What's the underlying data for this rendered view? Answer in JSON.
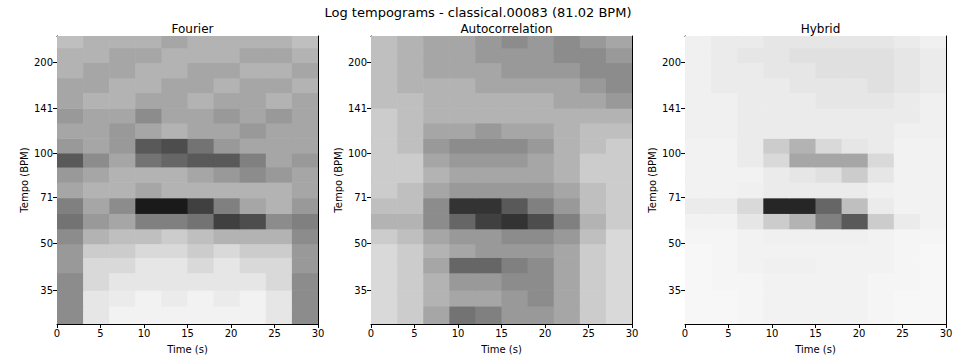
{
  "title": "Log tempograms - classical.00083 (81.02 BPM)",
  "chart_data": [
    {
      "type": "heatmap",
      "title": "Fourier",
      "x_label": "Time (s)",
      "y_label": "Tempo (BPM)",
      "xlim": [
        0,
        30
      ],
      "ylim": [
        27,
        245
      ],
      "xticks": [
        0,
        5,
        10,
        15,
        20,
        25,
        30
      ],
      "yticks": [
        35,
        50,
        71,
        100,
        141,
        200
      ],
      "log": "y",
      "color": "#000000",
      "color_range": [
        0,
        1
      ],
      "x_edges": [
        0,
        3,
        6,
        9,
        12,
        15,
        18,
        21,
        24,
        27,
        30
      ],
      "y_edges": [
        27,
        31,
        35,
        40,
        45,
        50,
        56,
        63,
        71,
        80,
        90,
        100,
        112,
        126,
        141,
        159,
        178,
        200,
        224,
        245
      ],
      "cells": [
        [
          0.45,
          0.1,
          0.05,
          0.05,
          0.05,
          0.05,
          0.05,
          0.05,
          0.1,
          0.45
        ],
        [
          0.45,
          0.1,
          0.08,
          0.05,
          0.08,
          0.05,
          0.08,
          0.05,
          0.1,
          0.45
        ],
        [
          0.45,
          0.15,
          0.1,
          0.1,
          0.1,
          0.1,
          0.1,
          0.1,
          0.15,
          0.45
        ],
        [
          0.4,
          0.15,
          0.15,
          0.1,
          0.1,
          0.15,
          0.1,
          0.15,
          0.15,
          0.4
        ],
        [
          0.4,
          0.2,
          0.2,
          0.15,
          0.15,
          0.2,
          0.15,
          0.2,
          0.2,
          0.4
        ],
        [
          0.45,
          0.3,
          0.25,
          0.25,
          0.2,
          0.25,
          0.3,
          0.3,
          0.3,
          0.45
        ],
        [
          0.55,
          0.4,
          0.35,
          0.5,
          0.5,
          0.55,
          0.75,
          0.7,
          0.45,
          0.5
        ],
        [
          0.5,
          0.35,
          0.45,
          0.9,
          0.9,
          0.75,
          0.5,
          0.35,
          0.3,
          0.4
        ],
        [
          0.35,
          0.3,
          0.3,
          0.35,
          0.3,
          0.3,
          0.3,
          0.3,
          0.3,
          0.35
        ],
        [
          0.4,
          0.35,
          0.3,
          0.3,
          0.3,
          0.35,
          0.4,
          0.45,
          0.4,
          0.35
        ],
        [
          0.65,
          0.45,
          0.35,
          0.55,
          0.6,
          0.65,
          0.65,
          0.5,
          0.35,
          0.4
        ],
        [
          0.4,
          0.35,
          0.4,
          0.65,
          0.7,
          0.55,
          0.4,
          0.35,
          0.35,
          0.35
        ],
        [
          0.35,
          0.35,
          0.4,
          0.35,
          0.3,
          0.35,
          0.35,
          0.4,
          0.35,
          0.35
        ],
        [
          0.4,
          0.35,
          0.35,
          0.45,
          0.35,
          0.35,
          0.4,
          0.35,
          0.4,
          0.35
        ],
        [
          0.35,
          0.3,
          0.3,
          0.35,
          0.35,
          0.3,
          0.35,
          0.35,
          0.3,
          0.35
        ],
        [
          0.35,
          0.35,
          0.3,
          0.3,
          0.35,
          0.35,
          0.3,
          0.35,
          0.35,
          0.3
        ],
        [
          0.3,
          0.35,
          0.35,
          0.3,
          0.3,
          0.35,
          0.35,
          0.3,
          0.3,
          0.35
        ],
        [
          0.3,
          0.3,
          0.35,
          0.35,
          0.3,
          0.3,
          0.3,
          0.35,
          0.35,
          0.3
        ],
        [
          0.25,
          0.3,
          0.3,
          0.3,
          0.35,
          0.3,
          0.3,
          0.3,
          0.3,
          0.25
        ]
      ]
    },
    {
      "type": "heatmap",
      "title": "Autocorrelation",
      "x_label": "Time (s)",
      "y_label": "Tempo (BPM)",
      "xlim": [
        0,
        30
      ],
      "ylim": [
        27,
        245
      ],
      "xticks": [
        0,
        5,
        10,
        15,
        20,
        25,
        30
      ],
      "yticks": [
        35,
        50,
        71,
        100,
        141,
        200
      ],
      "log": "y",
      "color": "#000000",
      "color_range": [
        0,
        1
      ],
      "x_edges": [
        0,
        3,
        6,
        9,
        12,
        15,
        18,
        21,
        24,
        27,
        30
      ],
      "y_edges": [
        27,
        31,
        35,
        40,
        45,
        50,
        56,
        63,
        71,
        80,
        90,
        100,
        112,
        126,
        141,
        159,
        178,
        200,
        224,
        245
      ],
      "cells": [
        [
          0.15,
          0.2,
          0.35,
          0.55,
          0.5,
          0.4,
          0.4,
          0.35,
          0.2,
          0.15
        ],
        [
          0.15,
          0.2,
          0.3,
          0.35,
          0.35,
          0.4,
          0.45,
          0.35,
          0.2,
          0.15
        ],
        [
          0.15,
          0.2,
          0.3,
          0.4,
          0.4,
          0.45,
          0.45,
          0.35,
          0.2,
          0.15
        ],
        [
          0.15,
          0.2,
          0.35,
          0.6,
          0.6,
          0.5,
          0.45,
          0.35,
          0.2,
          0.15
        ],
        [
          0.15,
          0.2,
          0.3,
          0.35,
          0.4,
          0.4,
          0.4,
          0.35,
          0.2,
          0.15
        ],
        [
          0.2,
          0.25,
          0.35,
          0.4,
          0.4,
          0.45,
          0.45,
          0.4,
          0.25,
          0.15
        ],
        [
          0.3,
          0.3,
          0.45,
          0.6,
          0.75,
          0.8,
          0.7,
          0.5,
          0.3,
          0.2
        ],
        [
          0.25,
          0.25,
          0.45,
          0.8,
          0.8,
          0.65,
          0.5,
          0.4,
          0.25,
          0.2
        ],
        [
          0.2,
          0.25,
          0.35,
          0.4,
          0.4,
          0.4,
          0.4,
          0.35,
          0.25,
          0.2
        ],
        [
          0.2,
          0.2,
          0.3,
          0.35,
          0.35,
          0.35,
          0.35,
          0.3,
          0.2,
          0.2
        ],
        [
          0.2,
          0.2,
          0.35,
          0.4,
          0.4,
          0.4,
          0.35,
          0.3,
          0.2,
          0.2
        ],
        [
          0.2,
          0.25,
          0.4,
          0.45,
          0.45,
          0.45,
          0.4,
          0.3,
          0.25,
          0.2
        ],
        [
          0.2,
          0.25,
          0.35,
          0.35,
          0.4,
          0.35,
          0.35,
          0.3,
          0.25,
          0.25
        ],
        [
          0.2,
          0.25,
          0.3,
          0.3,
          0.3,
          0.3,
          0.3,
          0.3,
          0.3,
          0.3
        ],
        [
          0.25,
          0.25,
          0.3,
          0.3,
          0.3,
          0.3,
          0.3,
          0.35,
          0.35,
          0.4
        ],
        [
          0.25,
          0.3,
          0.3,
          0.3,
          0.35,
          0.35,
          0.35,
          0.35,
          0.4,
          0.45
        ],
        [
          0.25,
          0.3,
          0.35,
          0.35,
          0.35,
          0.4,
          0.4,
          0.4,
          0.45,
          0.45
        ],
        [
          0.25,
          0.3,
          0.35,
          0.35,
          0.4,
          0.4,
          0.4,
          0.45,
          0.45,
          0.4
        ],
        [
          0.25,
          0.3,
          0.35,
          0.35,
          0.4,
          0.45,
          0.4,
          0.45,
          0.4,
          0.35
        ]
      ]
    },
    {
      "type": "heatmap",
      "title": "Hybrid",
      "x_label": "Time (s)",
      "y_label": "Tempo (BPM)",
      "xlim": [
        0,
        30
      ],
      "ylim": [
        27,
        245
      ],
      "xticks": [
        0,
        5,
        10,
        15,
        20,
        25,
        30
      ],
      "yticks": [
        35,
        50,
        71,
        100,
        141,
        200
      ],
      "log": "y",
      "color": "#000000",
      "color_range": [
        0,
        1
      ],
      "x_edges": [
        0,
        3,
        6,
        9,
        12,
        15,
        18,
        21,
        24,
        27,
        30
      ],
      "y_edges": [
        27,
        31,
        35,
        40,
        45,
        50,
        56,
        63,
        71,
        80,
        90,
        100,
        112,
        126,
        141,
        159,
        178,
        200,
        224,
        245
      ],
      "cells": [
        [
          0.03,
          0.03,
          0.04,
          0.05,
          0.05,
          0.05,
          0.05,
          0.04,
          0.03,
          0.03
        ],
        [
          0.03,
          0.03,
          0.04,
          0.05,
          0.05,
          0.05,
          0.05,
          0.04,
          0.03,
          0.03
        ],
        [
          0.03,
          0.04,
          0.04,
          0.05,
          0.05,
          0.05,
          0.05,
          0.04,
          0.04,
          0.03
        ],
        [
          0.03,
          0.04,
          0.05,
          0.06,
          0.06,
          0.05,
          0.05,
          0.05,
          0.04,
          0.03
        ],
        [
          0.03,
          0.04,
          0.05,
          0.05,
          0.05,
          0.05,
          0.05,
          0.05,
          0.04,
          0.03
        ],
        [
          0.04,
          0.04,
          0.05,
          0.06,
          0.06,
          0.06,
          0.06,
          0.05,
          0.04,
          0.04
        ],
        [
          0.05,
          0.05,
          0.1,
          0.2,
          0.3,
          0.5,
          0.65,
          0.2,
          0.08,
          0.05
        ],
        [
          0.08,
          0.08,
          0.15,
          0.85,
          0.85,
          0.6,
          0.25,
          0.08,
          0.05,
          0.05
        ],
        [
          0.05,
          0.05,
          0.06,
          0.08,
          0.08,
          0.08,
          0.08,
          0.06,
          0.05,
          0.05
        ],
        [
          0.05,
          0.05,
          0.05,
          0.08,
          0.1,
          0.12,
          0.2,
          0.1,
          0.05,
          0.05
        ],
        [
          0.05,
          0.05,
          0.08,
          0.15,
          0.35,
          0.35,
          0.35,
          0.15,
          0.05,
          0.05
        ],
        [
          0.05,
          0.05,
          0.08,
          0.2,
          0.3,
          0.15,
          0.1,
          0.08,
          0.05,
          0.05
        ],
        [
          0.06,
          0.06,
          0.08,
          0.08,
          0.08,
          0.08,
          0.08,
          0.08,
          0.06,
          0.06
        ],
        [
          0.06,
          0.06,
          0.08,
          0.08,
          0.08,
          0.08,
          0.08,
          0.08,
          0.08,
          0.06
        ],
        [
          0.06,
          0.06,
          0.08,
          0.08,
          0.08,
          0.1,
          0.1,
          0.1,
          0.08,
          0.06
        ],
        [
          0.06,
          0.08,
          0.08,
          0.08,
          0.1,
          0.1,
          0.1,
          0.12,
          0.1,
          0.08
        ],
        [
          0.06,
          0.08,
          0.08,
          0.1,
          0.1,
          0.12,
          0.12,
          0.12,
          0.1,
          0.08
        ],
        [
          0.06,
          0.08,
          0.1,
          0.1,
          0.12,
          0.12,
          0.12,
          0.12,
          0.1,
          0.08
        ],
        [
          0.06,
          0.08,
          0.08,
          0.1,
          0.1,
          0.1,
          0.1,
          0.1,
          0.08,
          0.06
        ]
      ]
    }
  ]
}
